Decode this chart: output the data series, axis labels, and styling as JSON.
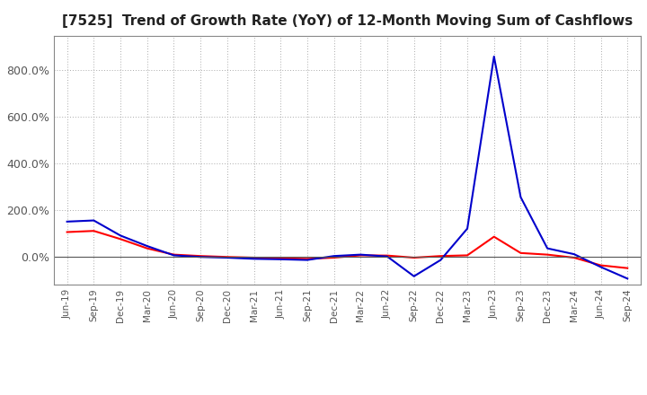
{
  "title": "[7525]  Trend of Growth Rate (YoY) of 12-Month Moving Sum of Cashflows",
  "title_fontsize": 11,
  "x_labels": [
    "Jun-19",
    "Sep-19",
    "Dec-19",
    "Mar-20",
    "Jun-20",
    "Sep-20",
    "Dec-20",
    "Mar-21",
    "Jun-21",
    "Sep-21",
    "Dec-21",
    "Mar-22",
    "Jun-22",
    "Sep-22",
    "Dec-22",
    "Mar-23",
    "Jun-23",
    "Sep-23",
    "Dec-23",
    "Mar-24",
    "Jun-24",
    "Sep-24"
  ],
  "operating_cashflow": [
    1.05,
    1.1,
    0.75,
    0.35,
    0.08,
    0.02,
    -0.02,
    -0.05,
    -0.08,
    -0.1,
    -0.05,
    0.05,
    0.04,
    -0.05,
    0.02,
    0.05,
    0.85,
    0.15,
    0.08,
    -0.05,
    -0.38,
    -0.5
  ],
  "free_cashflow": [
    1.5,
    1.55,
    0.9,
    0.45,
    0.05,
    -0.02,
    -0.05,
    -0.1,
    -0.12,
    -0.15,
    0.02,
    0.08,
    0.0,
    -0.85,
    -0.15,
    1.2,
    8.6,
    2.55,
    0.35,
    0.1,
    -0.45,
    -0.95
  ],
  "ylim_min": -1.2,
  "ylim_max": 9.5,
  "yticks": [
    0.0,
    2.0,
    4.0,
    6.0,
    8.0
  ],
  "ytick_labels": [
    "0.0%",
    "200.0%",
    "400.0%",
    "600.0%",
    "800.0%"
  ],
  "operating_color": "#FF0000",
  "free_color": "#0000CC",
  "background_color": "#FFFFFF",
  "grid_color": "#AAAAAA"
}
